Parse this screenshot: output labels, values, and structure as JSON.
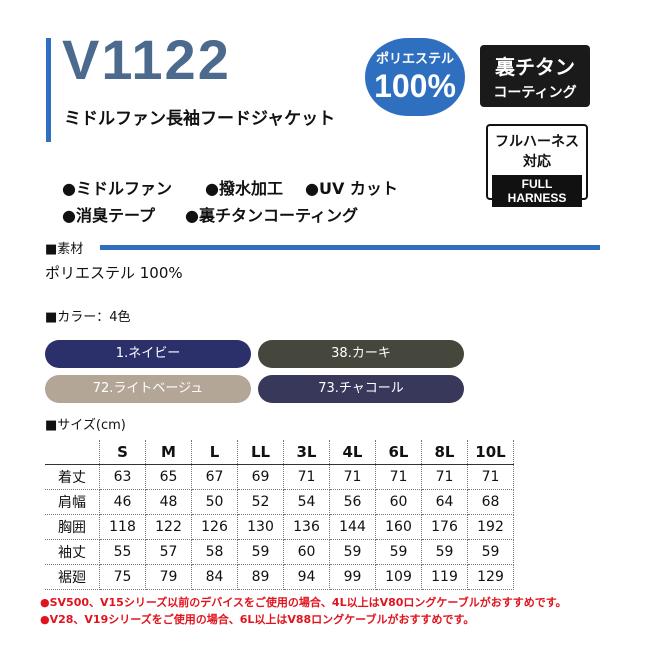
{
  "header": {
    "model": "V1122",
    "name": "ミドルファン長袖フードジャケット"
  },
  "badges": {
    "polyester": {
      "label": "ポリエステル",
      "value": "100%"
    },
    "titanium": {
      "line1": "裏チタン",
      "line2": "コーティング"
    },
    "harness": {
      "line1": "フルハーネス",
      "line2": "対応",
      "line3": "FULL HARNESS"
    }
  },
  "features": [
    "●ミドルファン",
    "●撥水加工",
    "●UV カット",
    "●消臭テープ",
    "●裏チタンコーティング"
  ],
  "material": {
    "label": "■素材",
    "value": "ポリエステル 100%"
  },
  "colors": {
    "label": "■カラー：4色",
    "items": [
      "1.ネイビー",
      "38.カーキ",
      "72.ライトベージュ",
      "73.チャコール"
    ]
  },
  "size": {
    "label": "■サイズ(cm)",
    "columns": [
      "S",
      "M",
      "L",
      "LL",
      "3L",
      "4L",
      "6L",
      "8L",
      "10L"
    ],
    "rows": [
      {
        "label": "着丈",
        "values": [
          "63",
          "65",
          "67",
          "69",
          "71",
          "71",
          "71",
          "71",
          "71"
        ]
      },
      {
        "label": "肩幅",
        "values": [
          "46",
          "48",
          "50",
          "52",
          "54",
          "56",
          "60",
          "64",
          "68"
        ]
      },
      {
        "label": "胸囲",
        "values": [
          "118",
          "122",
          "126",
          "130",
          "136",
          "144",
          "160",
          "176",
          "192"
        ]
      },
      {
        "label": "袖丈",
        "values": [
          "55",
          "57",
          "58",
          "59",
          "60",
          "59",
          "59",
          "59",
          "59"
        ]
      },
      {
        "label": "裾廻",
        "values": [
          "75",
          "79",
          "84",
          "89",
          "94",
          "99",
          "109",
          "119",
          "129"
        ]
      }
    ]
  },
  "notes": [
    "●SV500、V15シリーズ以前のデバイスをご使用の場合、4L以上はV80ロングケーブルがおすすめです。",
    "●V28、V19シリーズをご使用の場合、6L以上はV88ロングケーブルがおすすめです。"
  ]
}
